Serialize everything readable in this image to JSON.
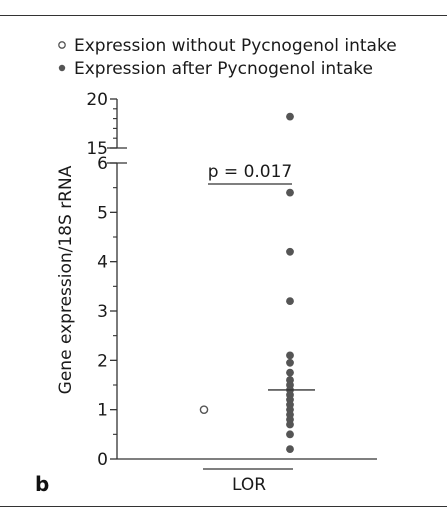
{
  "panel_label": "b",
  "chart_data": {
    "type": "scatter",
    "title": "",
    "xlabel": "LOR",
    "ylabel": "Gene expression/18S rRNA",
    "categories": [
      "LOR"
    ],
    "y_axis_break": {
      "lower_range": [
        0,
        6
      ],
      "upper_range": [
        15,
        20
      ]
    },
    "y_ticks_lower": [
      0,
      1,
      2,
      3,
      4,
      5,
      6
    ],
    "y_ticks_upper": [
      15,
      20
    ],
    "grid": false,
    "legend_position": "top-left",
    "annotation": "p = 0.017",
    "series": [
      {
        "name": "Expression without Pycnogenol intake",
        "marker": "open-circle",
        "values": [
          1.0
        ]
      },
      {
        "name": "Expression after Pycnogenol intake",
        "marker": "filled-circle",
        "values": [
          18.2,
          5.4,
          4.2,
          3.2,
          2.1,
          1.95,
          1.75,
          1.6,
          1.5,
          1.4,
          1.3,
          1.2,
          1.1,
          1.0,
          0.9,
          0.8,
          0.7,
          0.5,
          0.2
        ],
        "median": 1.4
      }
    ],
    "colors": {
      "filled": "#555555",
      "open_stroke": "#555555",
      "axis": "#333333"
    }
  }
}
